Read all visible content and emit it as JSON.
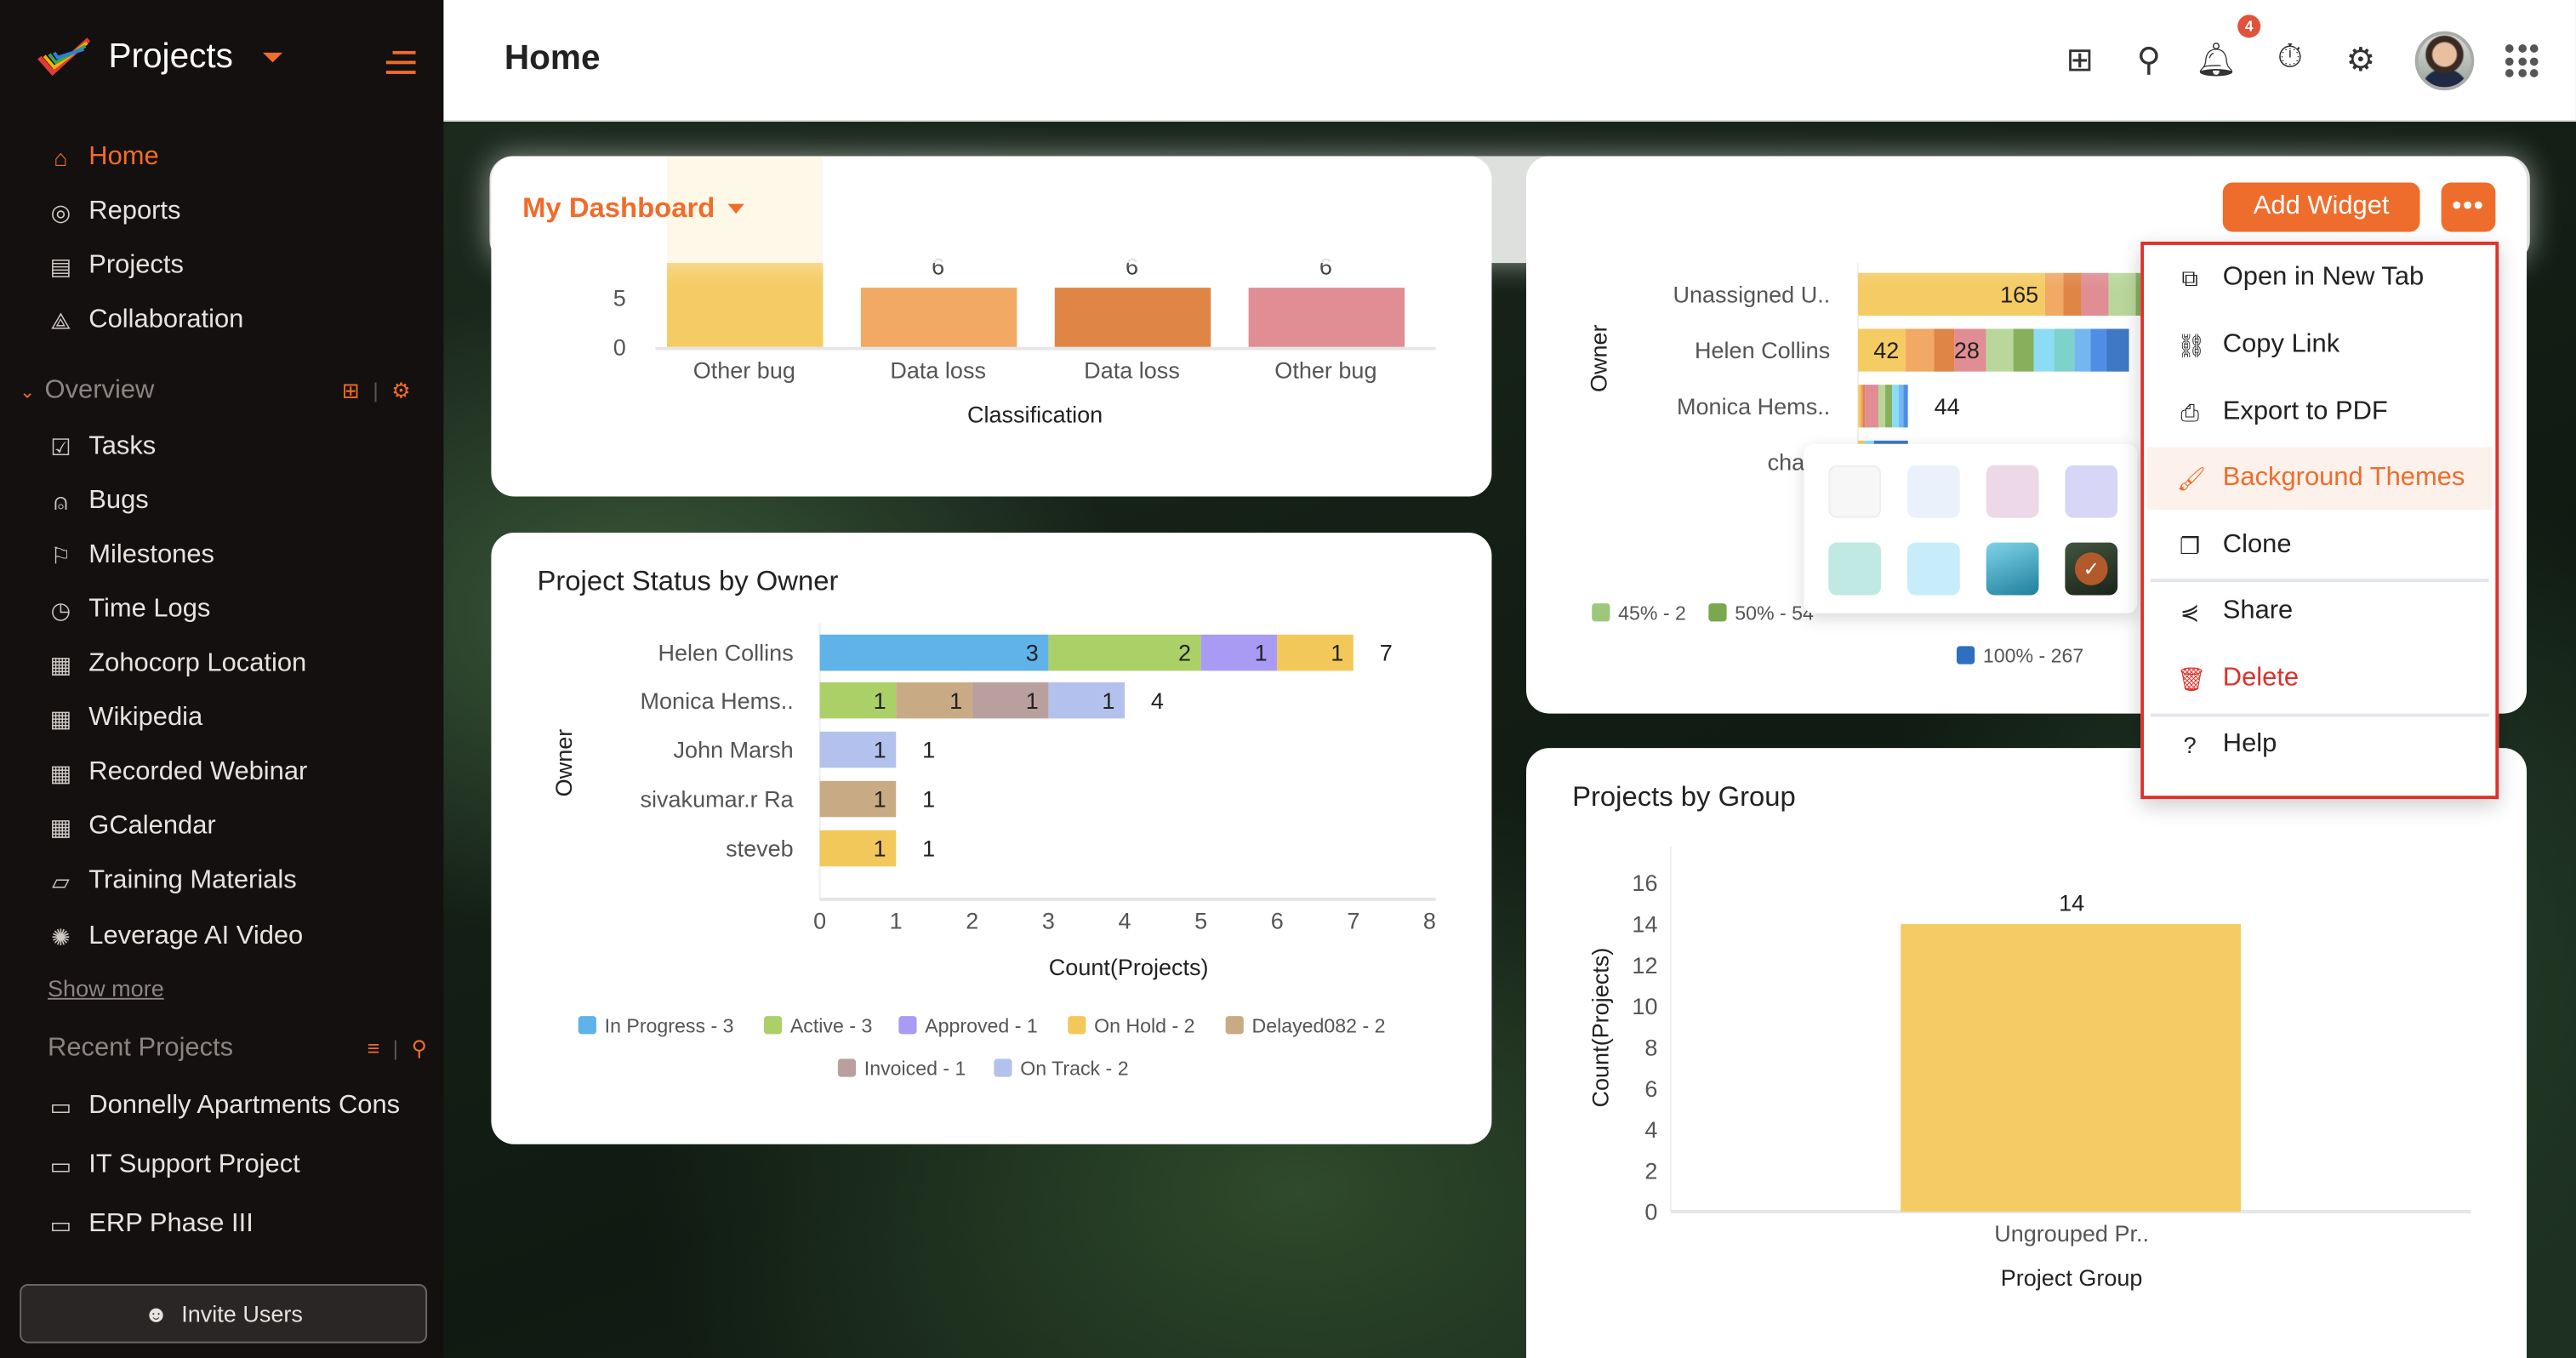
{
  "sidebar": {
    "app_name": "Projects",
    "primary": [
      {
        "label": "Home",
        "icon": "home-icon",
        "active": true
      },
      {
        "label": "Reports",
        "icon": "reports-icon"
      },
      {
        "label": "Projects",
        "icon": "projects-icon"
      },
      {
        "label": "Collaboration",
        "icon": "collaboration-icon"
      }
    ],
    "overview_label": "Overview",
    "overview": [
      {
        "label": "Tasks",
        "icon": "tasks-icon"
      },
      {
        "label": "Bugs",
        "icon": "bugs-icon"
      },
      {
        "label": "Milestones",
        "icon": "milestones-icon"
      },
      {
        "label": "Time Logs",
        "icon": "timer-icon"
      },
      {
        "label": "Zohocorp Location",
        "icon": "store-icon"
      },
      {
        "label": "Wikipedia",
        "icon": "store-icon"
      },
      {
        "label": "Recorded Webinar",
        "icon": "store-icon"
      },
      {
        "label": "GCalendar",
        "icon": "store-icon"
      },
      {
        "label": "Training Materials",
        "icon": "book-icon"
      },
      {
        "label": "Leverage AI Video",
        "icon": "ai-icon"
      }
    ],
    "show_more": "Show more",
    "recent_label": "Recent Projects",
    "recent": [
      {
        "label": "Donnelly Apartments Cons"
      },
      {
        "label": "IT Support Project"
      },
      {
        "label": "ERP Phase III"
      }
    ],
    "invite": "Invite Users"
  },
  "header": {
    "title": "Home",
    "notification_count": "4"
  },
  "dashboard": {
    "title": "My Dashboard",
    "add_widget": "Add Widget",
    "more": "•••"
  },
  "menu": {
    "items": [
      {
        "label": "Open in New Tab"
      },
      {
        "label": "Copy Link"
      },
      {
        "label": "Export to PDF"
      },
      {
        "label": "Background Themes"
      },
      {
        "label": "Clone"
      },
      {
        "label": "Share"
      },
      {
        "label": "Delete"
      },
      {
        "label": "Help"
      }
    ]
  },
  "themes": {
    "swatches": [
      "#f7f7f8",
      "#eaf1fb",
      "#ecd8e6",
      "#d7d6f6",
      "#bfe9e2",
      "#c7ecfa",
      "#3aa7c2",
      "#243a2a"
    ],
    "selected": 7
  },
  "colors": {
    "accent": "#f06c2a",
    "danger": "#e0302a"
  },
  "chart_data": [
    {
      "type": "bar",
      "xlabel": "Classification",
      "categories": [
        "Other bug",
        "Data loss",
        "Data loss",
        "Other bug"
      ],
      "values": [
        null,
        6,
        6,
        6
      ],
      "yticks": [
        0,
        5
      ],
      "colors": [
        "#f5cb64",
        "#f1a963",
        "#df8545",
        "#e08d93"
      ]
    },
    {
      "type": "bar",
      "orientation": "horizontal",
      "stacked": true,
      "title": "Project Status by Owner",
      "xlabel": "Count(Projects)",
      "ylabel": "Owner",
      "xlim": [
        0,
        8
      ],
      "xticks": [
        0,
        1,
        2,
        3,
        4,
        5,
        6,
        7,
        8
      ],
      "categories": [
        "Helen Collins",
        "Monica Hems..",
        "John Marsh",
        "sivakumar.r Ra",
        "steveb"
      ],
      "totals": [
        7,
        4,
        1,
        1,
        1
      ],
      "series": [
        {
          "name": "In Progress",
          "legend": "In Progress - 3",
          "color": "#5fb3e8",
          "values": [
            3,
            0,
            0,
            0,
            0
          ]
        },
        {
          "name": "Active",
          "legend": "Active - 3",
          "color": "#acd068",
          "values": [
            2,
            1,
            0,
            0,
            0
          ]
        },
        {
          "name": "Approved",
          "legend": "Approved - 1",
          "color": "#a99bf3",
          "values": [
            1,
            0,
            0,
            0,
            0
          ]
        },
        {
          "name": "On Hold",
          "legend": "On Hold - 2",
          "color": "#f3c85a",
          "values": [
            1,
            0,
            0,
            0,
            1
          ]
        },
        {
          "name": "Delayed082",
          "legend": "Delayed082 - 2",
          "color": "#c8ab84",
          "values": [
            0,
            1,
            0,
            1,
            0
          ]
        },
        {
          "name": "Invoiced",
          "legend": "Invoiced - 1",
          "color": "#b9a09e",
          "values": [
            0,
            1,
            0,
            0,
            0
          ]
        },
        {
          "name": "On Track",
          "legend": "On Track - 2",
          "color": "#b3c2ec",
          "values": [
            0,
            1,
            1,
            0,
            0
          ]
        }
      ]
    },
    {
      "type": "bar",
      "orientation": "horizontal",
      "stacked": true,
      "ylabel": "Owner",
      "categories": [
        "Unassigned U..",
        "Helen Collins",
        "Monica Hems..",
        "charle"
      ],
      "rows": [
        {
          "segments": [
            {
              "v": 165,
              "c": "#f5cb64",
              "label": "165"
            },
            {
              "v": 16,
              "c": "#f1a963"
            },
            {
              "v": 16,
              "c": "#df8545"
            },
            {
              "v": 24,
              "c": "#e08d93"
            },
            {
              "v": 24,
              "c": "#b9d79b"
            },
            {
              "v": 20,
              "c": "#87b05d"
            }
          ]
        },
        {
          "segments": [
            {
              "v": 42,
              "c": "#f5cb64",
              "label": "42"
            },
            {
              "v": 25,
              "c": "#f1a963"
            },
            {
              "v": 18,
              "c": "#df8545"
            },
            {
              "v": 28,
              "c": "#e08d93",
              "label": "28"
            },
            {
              "v": 24,
              "c": "#b9d79b"
            },
            {
              "v": 18,
              "c": "#87b05d"
            },
            {
              "v": 18,
              "c": "#8ddcf5"
            },
            {
              "v": 18,
              "c": "#7dd2cb"
            },
            {
              "v": 14,
              "c": "#74b6f0"
            },
            {
              "v": 14,
              "c": "#4f8ee6"
            },
            {
              "v": 20,
              "c": "#3f78c4"
            }
          ]
        },
        {
          "segments": [
            {
              "v": 2,
              "c": "#f5cb64"
            },
            {
              "v": 2,
              "c": "#f1a963"
            },
            {
              "v": 2,
              "c": "#df8545"
            },
            {
              "v": 12,
              "c": "#e08d93"
            },
            {
              "v": 6,
              "c": "#b9d79b"
            },
            {
              "v": 6,
              "c": "#87b05d"
            },
            {
              "v": 6,
              "c": "#8ddcf5"
            },
            {
              "v": 4,
              "c": "#74b6f0"
            },
            {
              "v": 4,
              "c": "#4f8ee6"
            }
          ],
          "total_label": "44"
        },
        {
          "segments": [
            {
              "v": 6,
              "c": "#f5cb64"
            },
            {
              "v": 8,
              "c": "#8ddcf5"
            },
            {
              "v": 30,
              "c": "#3f78c4"
            }
          ]
        }
      ],
      "legend": [
        {
          "label": "45% - 2",
          "color": "#9dc77a"
        },
        {
          "label": "50% - 54",
          "color": "#7aa84f"
        },
        {
          "label": "100% - 267",
          "color": "#2f6fc0"
        }
      ]
    },
    {
      "type": "bar",
      "title": "Projects by Group",
      "xlabel": "Project Group",
      "ylabel": "Count(Projects)",
      "categories": [
        "Ungrouped Pr.."
      ],
      "values": [
        14
      ],
      "ylim": [
        0,
        16
      ],
      "yticks": [
        0,
        2,
        4,
        6,
        8,
        10,
        12,
        14,
        16
      ],
      "color": "#f5cb64"
    }
  ]
}
